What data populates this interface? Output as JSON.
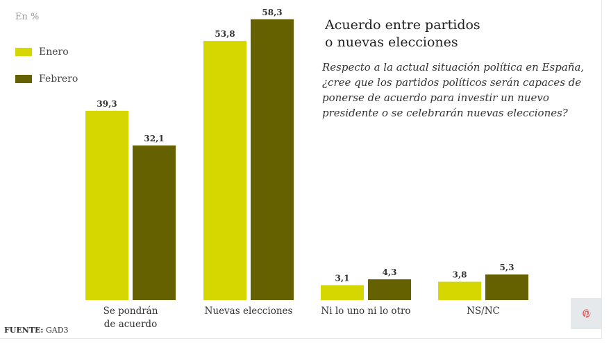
{
  "unit_label": "En %",
  "title_lines": [
    "Acuerdo entre partidos",
    "o nuevas elecciones"
  ],
  "question": "Respecto a la actual situación política en España, ¿cree que los partidos políticos serán capaces de ponerse de acuerdo para investir un nuevo presidente o se celebrarán nuevas elecciones?",
  "source_label": "FUENTE:",
  "source_value": "GAD3",
  "colors": {
    "enero": "#d6d600",
    "febrero": "#656000"
  },
  "pinterest_icon": "pinterest-icon",
  "chart_data": {
    "type": "bar",
    "title": "Acuerdo entre partidos o nuevas elecciones",
    "xlabel": "",
    "ylabel": "En %",
    "ylim": [
      0,
      60
    ],
    "grid": false,
    "legend": "top-left",
    "categories": [
      [
        "Se pondrán",
        "de acuerdo"
      ],
      [
        "Nuevas elecciones"
      ],
      [
        "Ni lo uno ni lo otro"
      ],
      [
        "NS/NC"
      ]
    ],
    "series": [
      {
        "name": "Enero",
        "color": "#d6d600",
        "values": [
          39.3,
          53.8,
          3.1,
          3.8
        ],
        "labels": [
          "39,3",
          "53,8",
          "3,1",
          "3,8"
        ]
      },
      {
        "name": "Febrero",
        "color": "#656000",
        "values": [
          32.1,
          58.3,
          4.3,
          5.3
        ],
        "labels": [
          "32,1",
          "58,3",
          "4,3",
          "5,3"
        ]
      }
    ]
  }
}
